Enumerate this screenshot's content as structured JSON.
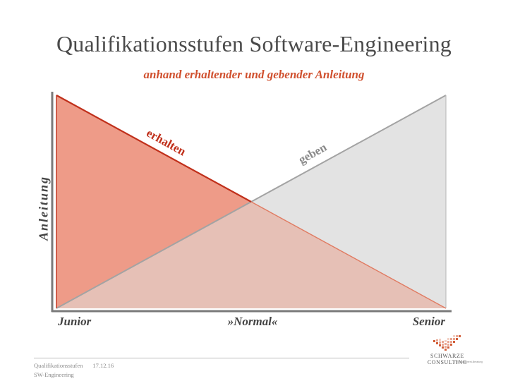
{
  "title": "Qualifikationsstufen Software-Engineering",
  "subtitle": "anhand erhaltender und gebender Anleitung",
  "diagram": {
    "y_axis_label": "Anleitung",
    "x_axis_labels": [
      "Junior",
      "»Normal«",
      "Senior"
    ],
    "lines": {
      "receive": "erhalten",
      "give": "geben"
    },
    "colors": {
      "receive_fill": "#ee9b88",
      "receive_line": "#c0301b",
      "give_fill": "#e3e3e3",
      "give_line": "#a3a3a3",
      "overlap_fill": "#e6c0b6",
      "axis": "#7a7a7a"
    }
  },
  "footer": {
    "doc_title_line1": "Qualifikationsstufen",
    "doc_title_line2": "SW-Engineering",
    "date": "17.12.16"
  },
  "logo": {
    "name": "SCHWARZE CONSULTING",
    "tagline": "IT-Management-Beratung",
    "icon": "pixel-check-logo-icon"
  }
}
